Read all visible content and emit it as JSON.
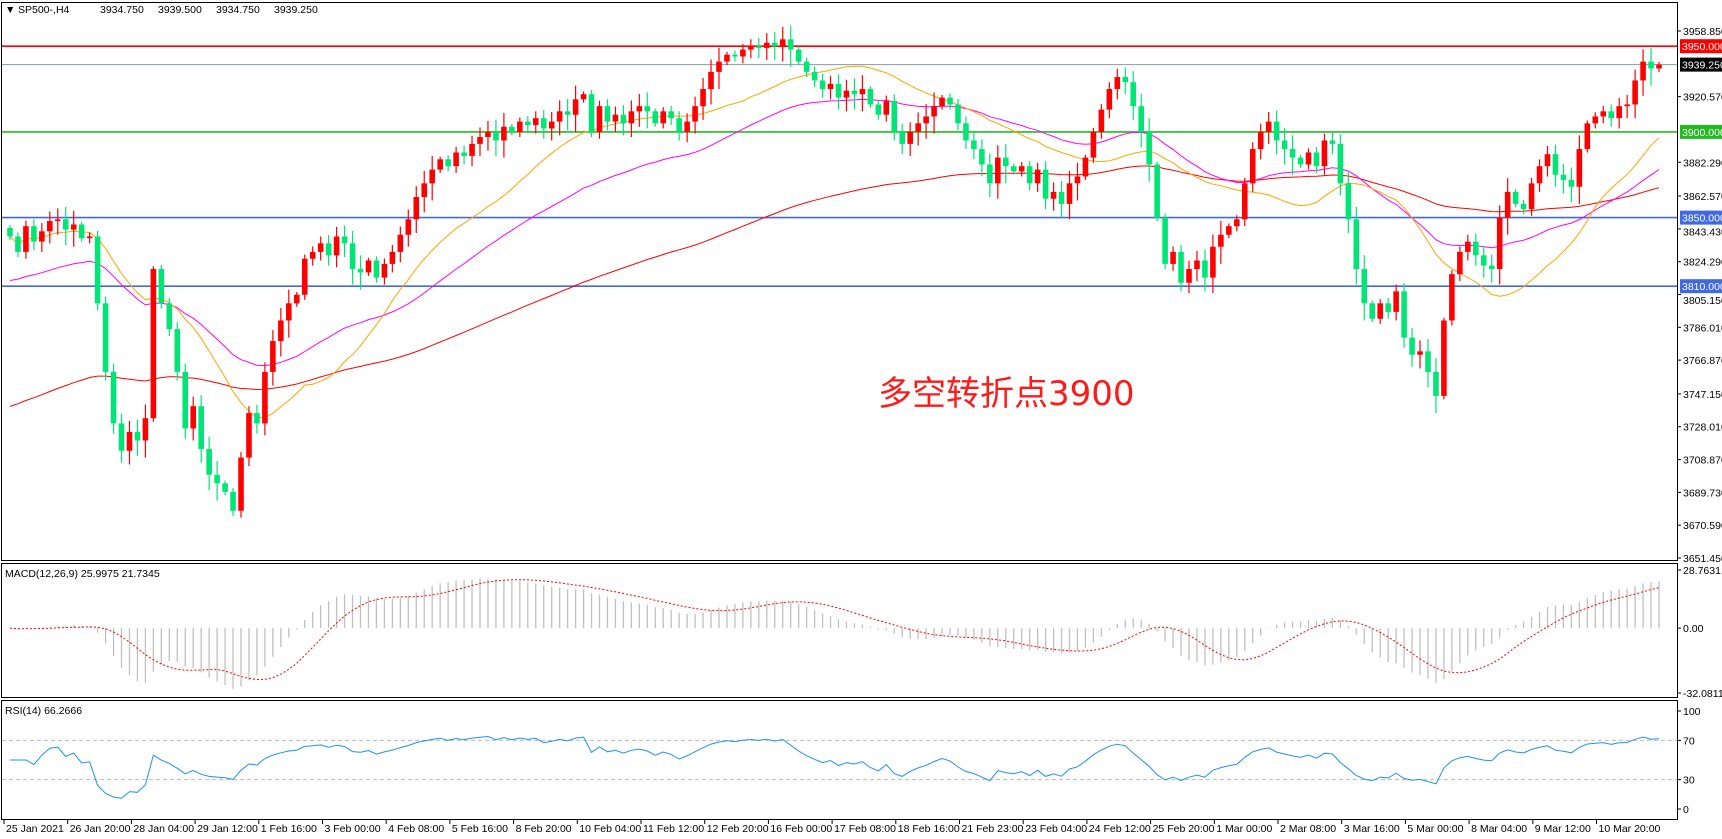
{
  "chart_data": {
    "type": "candlestick",
    "title": "SP500-,H4",
    "ohlc_readout": [
      "3934.750",
      "3939.500",
      "3934.750",
      "3939.250"
    ],
    "colors": {
      "up": "#ff0000",
      "down": "#00e676",
      "ma_fast": "#ffa500",
      "ma_mid": "#ff00ff",
      "ma_slow": "#ff0000",
      "rsi": "#1e90ff",
      "macd_hist": "#c0c0c0",
      "macd_signal": "#ff0000"
    },
    "closes": [
      3839,
      3830,
      3845,
      3836,
      3842,
      3848,
      3849,
      3843,
      3846,
      3838,
      3839,
      3800,
      3760,
      3730,
      3714,
      3725,
      3720,
      3733,
      3820,
      3800,
      3785,
      3760,
      3727,
      3740,
      3715,
      3700,
      3695,
      3690,
      3679,
      3710,
      3736,
      3730,
      3760,
      3778,
      3790,
      3800,
      3805,
      3826,
      3830,
      3835,
      3828,
      3839,
      3835,
      3820,
      3818,
      3825,
      3815,
      3823,
      3830,
      3840,
      3849,
      3862,
      3870,
      3878,
      3884,
      3880,
      3888,
      3886,
      3893,
      3897,
      3900,
      3895,
      3903,
      3900,
      3906,
      3904,
      3908,
      3902,
      3906,
      3912,
      3910,
      3919,
      3922,
      3900,
      3915,
      3906,
      3910,
      3905,
      3912,
      3915,
      3912,
      3905,
      3912,
      3908,
      3900,
      3906,
      3915,
      3925,
      3935,
      3941,
      3945,
      3944,
      3948,
      3950,
      3949,
      3952,
      3950,
      3954,
      3948,
      3941,
      3935,
      3930,
      3925,
      3928,
      3920,
      3924,
      3922,
      3925,
      3916,
      3910,
      3918,
      3900,
      3893,
      3900,
      3905,
      3909,
      3915,
      3920,
      3916,
      3905,
      3895,
      3890,
      3881,
      3870,
      3885,
      3880,
      3877,
      3880,
      3870,
      3878,
      3861,
      3865,
      3858,
      3870,
      3874,
      3885,
      3900,
      3913,
      3925,
      3932,
      3929,
      3915,
      3900,
      3881,
      3850,
      3823,
      3830,
      3812,
      3820,
      3825,
      3815,
      3833,
      3840,
      3845,
      3849,
      3870,
      3890,
      3900,
      3906,
      3895,
      3890,
      3885,
      3881,
      3888,
      3880,
      3895,
      3893,
      3870,
      3849,
      3820,
      3800,
      3791,
      3800,
      3795,
      3807,
      3780,
      3770,
      3772,
      3760,
      3746,
      3790,
      3817,
      3830,
      3836,
      3828,
      3822,
      3820,
      3850,
      3865,
      3858,
      3855,
      3870,
      3880,
      3887,
      3875,
      3872,
      3868,
      3890,
      3905,
      3909,
      3912,
      3908,
      3915,
      3916,
      3930,
      3941,
      3937,
      3939.25
    ],
    "y_ticks": [
      "3958.850",
      "3920.570",
      "3882.290",
      "3862.570",
      "3843.430",
      "3824.290",
      "3805.150",
      "3786.010",
      "3766.870",
      "3747.150",
      "3728.010",
      "3708.870",
      "3689.730",
      "3670.590",
      "3651.450"
    ],
    "ylim": [
      3651.45,
      3958.85
    ],
    "levels": [
      {
        "value": 3950,
        "label": "3950.000",
        "color": "#ff0000"
      },
      {
        "value": 3939.25,
        "label": "3939.250",
        "color": "#000000",
        "line": "#8a9aa8"
      },
      {
        "value": 3900,
        "label": "3900.000",
        "color": "#22bb22"
      },
      {
        "value": 3850,
        "label": "3850.000",
        "color": "#4169e1"
      },
      {
        "value": 3810,
        "label": "3810.000",
        "color": "#4169e1"
      }
    ],
    "annotation": "多空转折点3900",
    "x_ticks": [
      "25 Jan 2021",
      "26 Jan 20:00",
      "28 Jan 04:00",
      "29 Jan 12:00",
      "1 Feb 16:00",
      "3 Feb 00:00",
      "4 Feb 08:00",
      "5 Feb 16:00",
      "8 Feb 20:00",
      "10 Feb 04:00",
      "11 Feb 12:00",
      "12 Feb 20:00",
      "16 Feb 00:00",
      "17 Feb 08:00",
      "18 Feb 16:00",
      "21 Feb 23:00",
      "23 Feb 04:00",
      "24 Feb 12:00",
      "25 Feb 20:00",
      "1 Mar 00:00",
      "2 Mar 08:00",
      "3 Mar 16:00",
      "5 Mar 00:00",
      "8 Mar 04:00",
      "9 Mar 12:00",
      "10 Mar 20:00"
    ],
    "macd": {
      "label": "MACD(12,26,9) 25.9975 21.7345",
      "ticks": [
        "28.7631",
        "0.00",
        "-32.0811"
      ],
      "ylim": [
        -32.0811,
        28.7631
      ]
    },
    "rsi": {
      "label": "RSI(14) 66.2666",
      "ticks": [
        "100",
        "70",
        "30",
        "0"
      ],
      "levels": [
        70,
        30
      ]
    }
  }
}
